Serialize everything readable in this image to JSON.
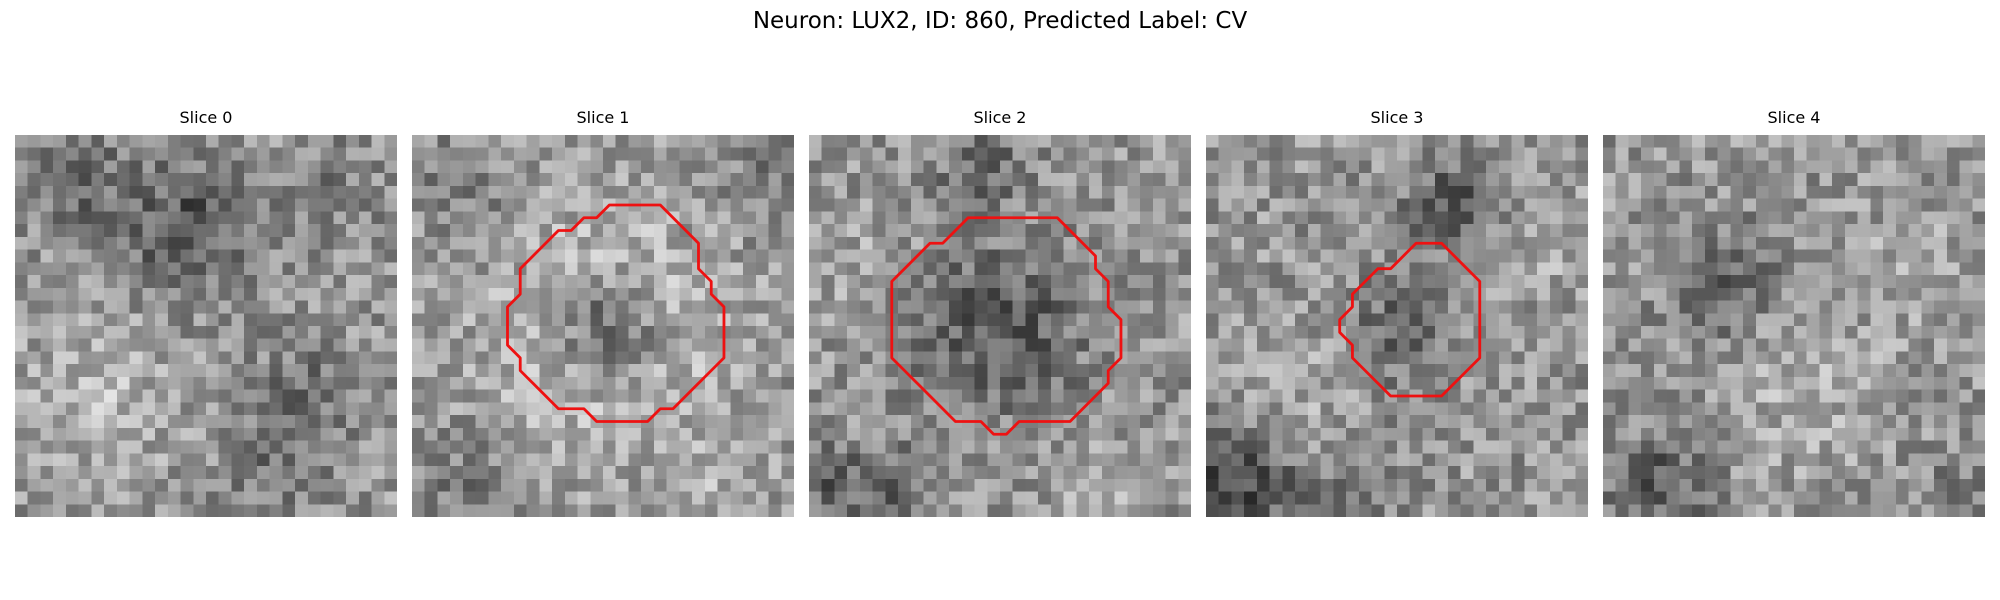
{
  "figure": {
    "title": "Neuron: LUX2, ID: 860, Predicted Label: CV"
  },
  "panels": [
    {
      "title": "Slice 0",
      "roi_outline": false
    },
    {
      "title": "Slice 1",
      "roi_outline": true
    },
    {
      "title": "Slice 2",
      "roi_outline": true
    },
    {
      "title": "Slice 3",
      "roi_outline": true
    },
    {
      "title": "Slice 4",
      "roi_outline": false
    }
  ],
  "colors": {
    "outline": "#ee1111",
    "background": "#ffffff"
  }
}
